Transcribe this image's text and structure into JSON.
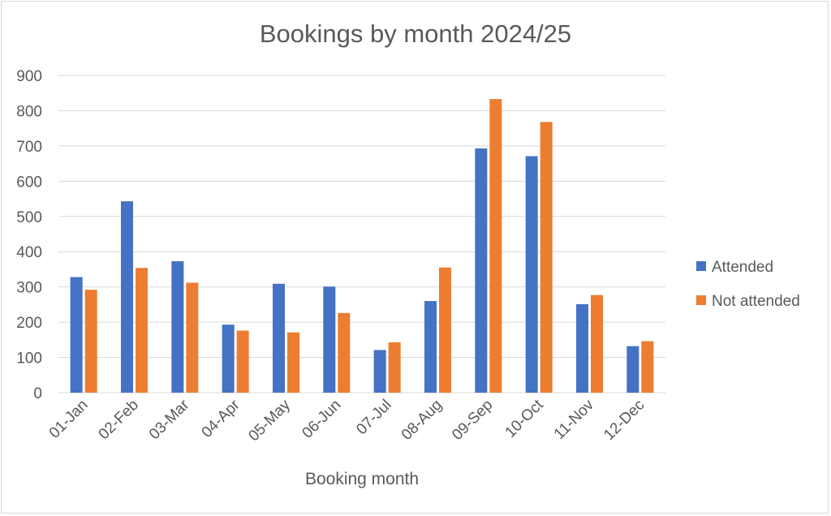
{
  "chart_data": {
    "type": "bar",
    "title": "Bookings by month 2024/25",
    "xlabel": "Booking month",
    "ylabel": "",
    "ylim": [
      0,
      900
    ],
    "yticks": [
      "0",
      "100",
      "200",
      "300",
      "400",
      "500",
      "600",
      "700",
      "800",
      "900"
    ],
    "categories": [
      "01-Jan",
      "02-Feb",
      "03-Mar",
      "04-Apr",
      "05-May",
      "06-Jun",
      "07-Jul",
      "08-Aug",
      "09-Sep",
      "10-Oct",
      "11-Nov",
      "12-Dec"
    ],
    "series": [
      {
        "name": "Attended",
        "color": "#4472c4",
        "values": [
          328,
          543,
          373,
          193,
          309,
          301,
          121,
          260,
          693,
          671,
          251,
          132
        ]
      },
      {
        "name": "Not attended",
        "color": "#ed7d31",
        "values": [
          292,
          354,
          312,
          176,
          171,
          226,
          143,
          355,
          833,
          768,
          277,
          146
        ]
      }
    ],
    "grid": true,
    "legend": "right"
  }
}
